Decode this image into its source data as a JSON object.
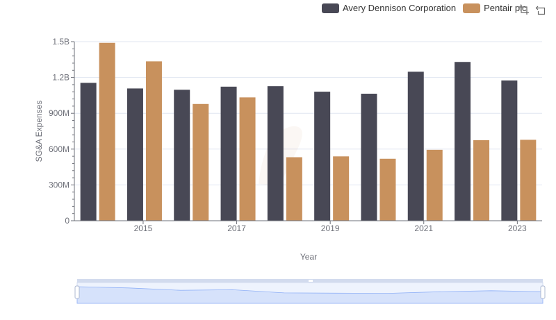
{
  "legend": {
    "items": [
      {
        "label": "Avery Dennison Corporation",
        "color": "#484855"
      },
      {
        "label": "Pentair plc",
        "color": "#c8915d"
      }
    ]
  },
  "toolbox": {
    "icons": [
      "zoom-icon",
      "restore-icon"
    ]
  },
  "chart_data": {
    "type": "bar",
    "categories": [
      "2014",
      "2015",
      "2016",
      "2017",
      "2018",
      "2019",
      "2020",
      "2021",
      "2022",
      "2023"
    ],
    "x_tick_labels": [
      "2015",
      "2017",
      "2019",
      "2021",
      "2023"
    ],
    "series": [
      {
        "name": "Avery Dennison Corporation",
        "color": "#484855",
        "values": [
          1155000000,
          1108000000,
          1097000000,
          1123000000,
          1127000000,
          1081000000,
          1064000000,
          1248000000,
          1330000000,
          1175000000
        ]
      },
      {
        "name": "Pentair plc",
        "color": "#c8915d",
        "values": [
          1490000000,
          1335000000,
          978000000,
          1033000000,
          532000000,
          539000000,
          519000000,
          594000000,
          675000000,
          678000000
        ]
      }
    ],
    "xlabel": "Year",
    "ylabel": "SG&A Expenses",
    "ylim": [
      0,
      1500000000
    ],
    "y_ticks": [
      0,
      300000000,
      600000000,
      900000000,
      1200000000,
      1500000000
    ],
    "y_tick_labels": [
      "0",
      "300M",
      "600M",
      "900M",
      "1.2B",
      "1.5B"
    ],
    "grid": true,
    "legend_position": "top-right",
    "data_zoom": {
      "range": [
        0,
        100
      ]
    },
    "colors": {
      "grid": "#e0e6f1",
      "axis": "#6e7079",
      "zoom_fill": "#d6e2fb",
      "zoom_border": "#d2dbee"
    }
  }
}
